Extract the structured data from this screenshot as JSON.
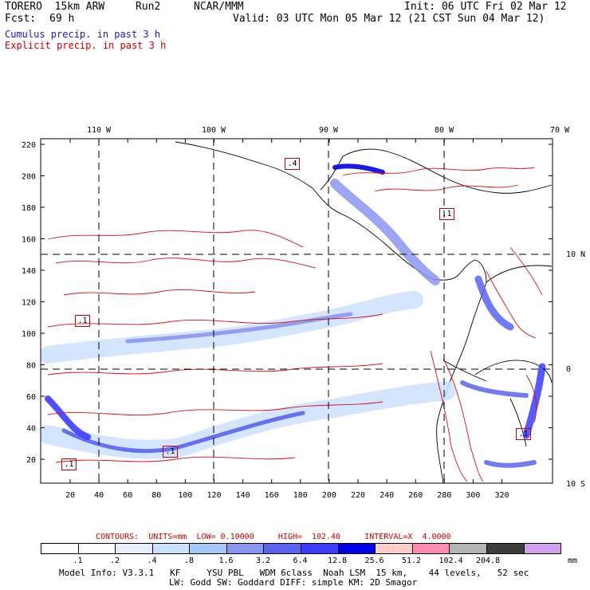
{
  "header": {
    "model": "TORERO  15km ARW",
    "run": "Run2",
    "org": "NCAR/MMM",
    "init": "Init: 06 UTC Fri 02 Mar 12",
    "fcst_label": "Fcst:",
    "fcst_value": "69 h",
    "valid": "Valid: 03 UTC Mon 05 Mar 12 (21 CST Sun 04 Mar 12)"
  },
  "legend": {
    "cumulus": "Cumulus precip. in past 3 h",
    "explicit": "Explicit precip. in past 3 h",
    "cumulus_color": "#1a1acc",
    "explicit_color": "#cc0000"
  },
  "axes": {
    "top_lon": [
      "110 W",
      "100 W",
      "90 W",
      "80 W",
      "70 W"
    ],
    "right_lat": [
      "10 N",
      "0",
      "10 S"
    ],
    "left_y": [
      "220",
      "200",
      "180",
      "160",
      "140",
      "120",
      "100",
      "80",
      "60",
      "40",
      "20"
    ],
    "bottom_x": [
      "20",
      "40",
      "60",
      "80",
      "100",
      "120",
      "140",
      "160",
      "180",
      "200",
      "220",
      "240",
      "260",
      "280",
      "300",
      "320"
    ]
  },
  "contour_labels": [
    ".4",
    ".1",
    ".1",
    ".1",
    ".1",
    ".1"
  ],
  "contours_line": {
    "label": "CONTOURS:",
    "units": "UNITS=mm",
    "low": "LOW= 0.10000",
    "high": "HIGH=  102.40",
    "interval": "INTERVAL=X  4.0000"
  },
  "colorbar": {
    "labels": [
      ".1",
      ".2",
      ".4",
      ".8",
      "1.6",
      "3.2",
      "6.4",
      "12.8",
      "25.6",
      "51.2",
      "102.4",
      "204.8"
    ],
    "unit": "mm",
    "colors": [
      "#ffffff",
      "#ffffff",
      "#e6f0ff",
      "#cce0ff",
      "#a6c8ff",
      "#8c96f0",
      "#5a64f0",
      "#3c3cff",
      "#0000e6",
      "#ffcccc",
      "#ff8cb4",
      "#b4b4b4",
      "#3c3c3c",
      "#d2a0f0"
    ]
  },
  "footer": {
    "line1": "Model Info: V3.3.1   KF     YSU PBL   WDM 6class  Noah LSM  15 km,    44 levels,   52 sec",
    "line2": "LW: Godd SW: Goddard DIFF: simple KM: 2D Smagor"
  }
}
